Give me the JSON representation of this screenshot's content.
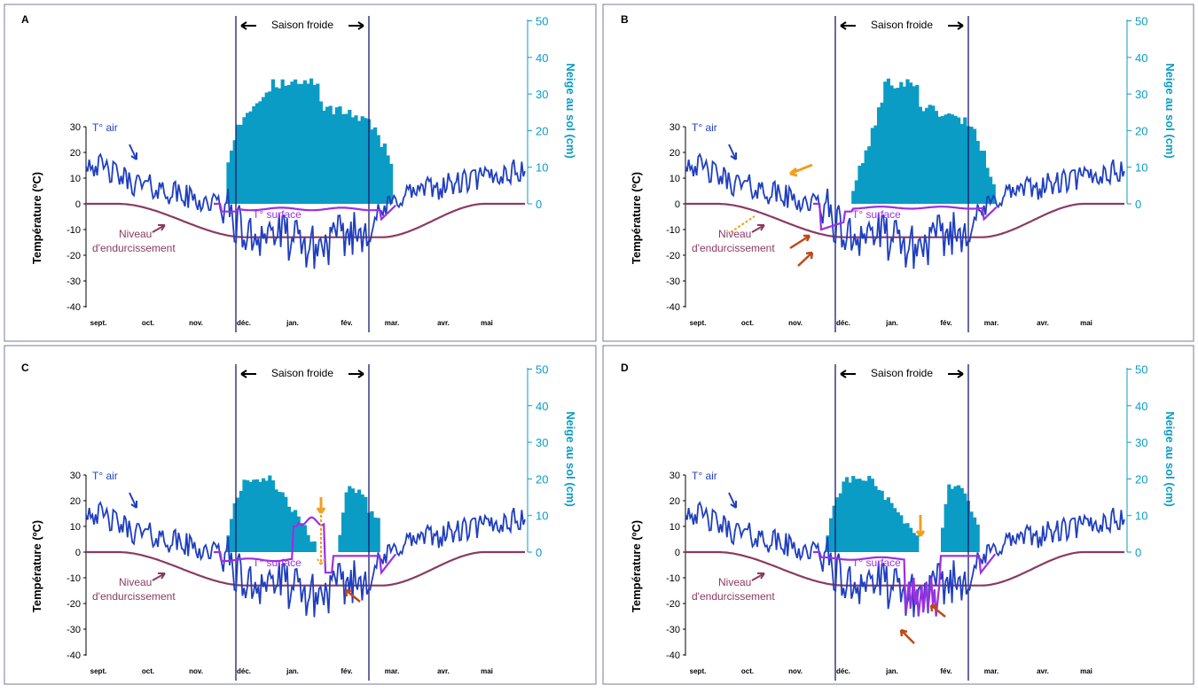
{
  "panel_labels": [
    "A",
    "B",
    "C",
    "D"
  ],
  "axis": {
    "y_left_label": "Température (ºC)",
    "y_right_label": "Neige au sol (cm)",
    "y_left_ticks": [
      "30",
      "20",
      "10",
      "0",
      "-10",
      "-20",
      "-30",
      "-40"
    ],
    "y_right_ticks": [
      "50",
      "40",
      "30",
      "20",
      "10",
      "0"
    ],
    "months": [
      "sept.",
      "oct.",
      "nov.",
      "déc.",
      "jan.",
      "fév.",
      "mar.",
      "avr.",
      "mai"
    ]
  },
  "labels": {
    "season": "Saison froide",
    "air": "T° air",
    "surface": "T° surface",
    "hardening_1": "Niveau",
    "hardening_2": "d'endurcissement"
  },
  "colors": {
    "air": "#1f3fbf",
    "surface": "#9b30e0",
    "hardening": "#8b3a62",
    "snow": "#0a9cc4",
    "season_line": "#1a1a6e",
    "arrow_orange": "#f0a020",
    "arrow_red": "#c04818",
    "frame": "#7a7a9a"
  },
  "chart_data": [
    {
      "panel": "A",
      "type": "area",
      "x_months": [
        "sept.",
        "oct.",
        "nov.",
        "déc.",
        "jan.",
        "fév.",
        "mar.",
        "avr.",
        "mai"
      ],
      "ylim_temp": [
        -40,
        30
      ],
      "ylim_snow": [
        0,
        50
      ],
      "cold_season": [
        "déc.",
        "fév."
      ],
      "snow_profile": "full",
      "snow_peak_cm": 34,
      "surface_temp_range": [
        -4,
        0
      ],
      "hardening_min_c": -13,
      "air_temp_range": [
        -29,
        20
      ],
      "annotations": []
    },
    {
      "panel": "B",
      "type": "area",
      "x_months": [
        "sept.",
        "oct.",
        "nov.",
        "déc.",
        "jan.",
        "fév.",
        "mar.",
        "avr.",
        "mai"
      ],
      "ylim_temp": [
        -40,
        30
      ],
      "ylim_snow": [
        0,
        50
      ],
      "cold_season": [
        "déc.",
        "fév."
      ],
      "snow_profile": "late_start",
      "snow_peak_cm": 34,
      "surface_temp_range": [
        -10,
        0
      ],
      "hardening_min_c": -13,
      "air_temp_range": [
        -29,
        20
      ],
      "annotations": [
        "late snow onset",
        "early autumn freeze"
      ]
    },
    {
      "panel": "C",
      "type": "area",
      "x_months": [
        "sept.",
        "oct.",
        "nov.",
        "déc.",
        "jan.",
        "fév.",
        "mar.",
        "avr.",
        "mai"
      ],
      "ylim_temp": [
        -40,
        30
      ],
      "ylim_snow": [
        0,
        50
      ],
      "cold_season": [
        "déc.",
        "fév."
      ],
      "snow_profile": "thaw_gap",
      "snow_peak_cm": 17,
      "surface_temp_range": [
        -10,
        13
      ],
      "hardening_min_c": -13,
      "air_temp_range": [
        -29,
        20
      ],
      "annotations": [
        "midwinter thaw",
        "dehardening"
      ]
    },
    {
      "panel": "D",
      "type": "area",
      "x_months": [
        "sept.",
        "oct.",
        "nov.",
        "déc.",
        "jan.",
        "fév.",
        "mar.",
        "avr.",
        "mai"
      ],
      "ylim_temp": [
        -40,
        30
      ],
      "ylim_snow": [
        0,
        50
      ],
      "cold_season": [
        "déc.",
        "fév."
      ],
      "snow_profile": "melt_gap",
      "snow_peak_cm": 17,
      "surface_temp_range": [
        -27,
        0
      ],
      "hardening_min_c": -13,
      "air_temp_range": [
        -29,
        20
      ],
      "annotations": [
        "snow melt",
        "surface freeze"
      ]
    }
  ]
}
